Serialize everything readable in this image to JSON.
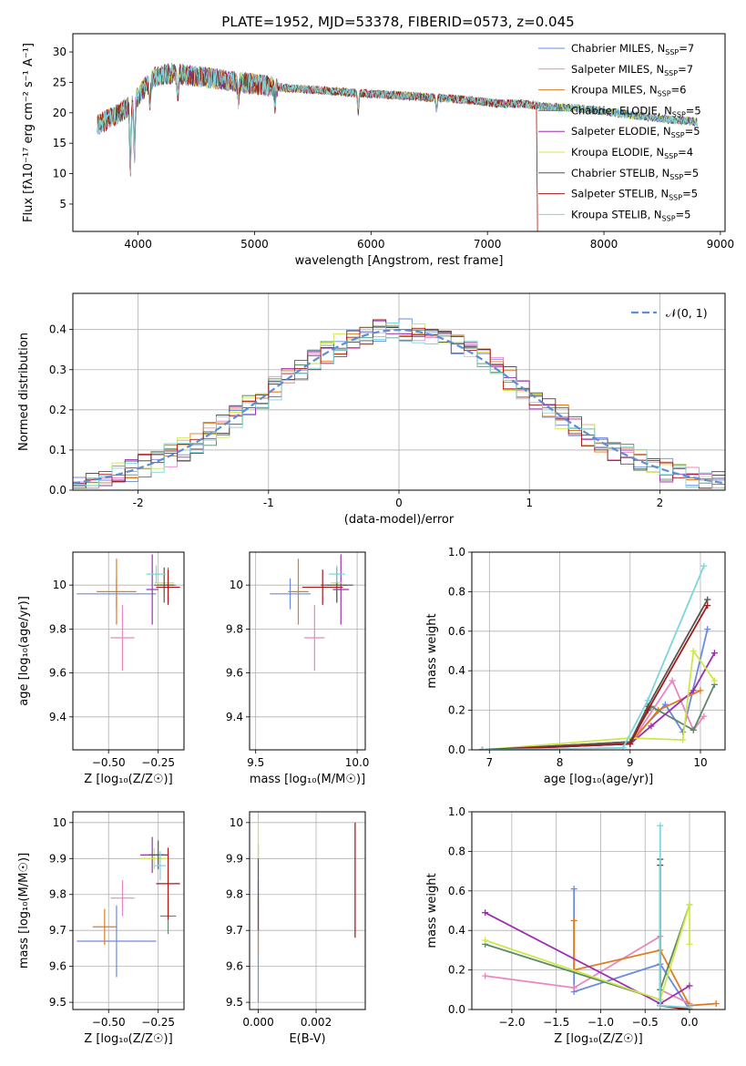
{
  "figure_title": "PLATE=1952, MJD=53378, FIBERID=0573, z=0.045",
  "colors": {
    "Chabrier MILES": "#6b8ae0",
    "Salpeter MILES": "#e887c0",
    "Kroupa MILES": "#e07b20",
    "Chabrier ELODIE": "#5a8a66",
    "Salpeter ELODIE": "#9c2fb0",
    "Kroupa ELODIE": "#cde84a",
    "Chabrier STELIB": "#555555",
    "Salpeter STELIB": "#a51818",
    "Kroupa STELIB": "#7dd6dd",
    "normal": "#5b8ed6"
  },
  "chart_data": [
    {
      "id": "spectrum",
      "type": "line",
      "xlabel": "wavelength [Angstrom, rest frame]",
      "ylabel": "Flux [fλ10⁻¹⁷ erg cm⁻² s⁻¹ A⁻¹]",
      "xlim": [
        3440,
        9040
      ],
      "ylim": [
        0.5,
        33
      ],
      "xticks": [
        4000,
        5000,
        6000,
        7000,
        8000,
        9000
      ],
      "yticks": [
        5,
        10,
        15,
        20,
        25,
        30
      ],
      "grid": false,
      "legend_position": "top-right",
      "legend": [
        {
          "name": "Chabrier MILES",
          "nssp": "7"
        },
        {
          "name": "Salpeter MILES",
          "nssp": "7"
        },
        {
          "name": "Kroupa MILES",
          "nssp": "6"
        },
        {
          "name": "Chabrier ELODIE",
          "nssp": "5"
        },
        {
          "name": "Salpeter ELODIE",
          "nssp": "5"
        },
        {
          "name": "Kroupa ELODIE",
          "nssp": "4"
        },
        {
          "name": "Chabrier STELIB",
          "nssp": "5"
        },
        {
          "name": "Salpeter STELIB",
          "nssp": "5"
        },
        {
          "name": "Kroupa STELIB",
          "nssp": "5"
        }
      ],
      "continuum": {
        "x": [
          3650,
          3750,
          3850,
          3950,
          4050,
          4150,
          4300,
          4500,
          4700,
          4900,
          5100,
          5300,
          5500,
          5700,
          5900,
          6100,
          6300,
          6500,
          6700,
          6900,
          7100,
          7300,
          7500,
          7700,
          7900,
          8100,
          8300,
          8500,
          8700,
          8800
        ],
        "y": [
          18,
          19,
          20,
          21.5,
          24,
          26,
          26.5,
          26,
          25.5,
          25,
          24.5,
          24,
          23.8,
          23.5,
          23.2,
          23,
          22.8,
          22.5,
          22.3,
          22,
          21.5,
          21.5,
          21,
          20.8,
          20.5,
          20,
          19.5,
          19,
          18.7,
          18.5
        ]
      },
      "series_end_wavelength": {
        "Salpeter STELIB": 7420,
        "Kroupa MILES": 7420,
        "Salpeter MILES": 7420
      }
    },
    {
      "id": "residuals",
      "type": "histogram",
      "xlabel": "(data-model)/error",
      "ylabel": "Normed distribution",
      "xlim": [
        -2.5,
        2.5
      ],
      "ylim": [
        0,
        0.49
      ],
      "xticks": [
        -2,
        -1,
        0,
        1,
        2
      ],
      "yticks": [
        0.0,
        0.1,
        0.2,
        0.3,
        0.4
      ],
      "grid": true,
      "bin_width": 0.1,
      "legend": [
        {
          "label": "𝒩(0, 1)",
          "style": "dashed"
        }
      ],
      "legend_position": "top-right"
    },
    {
      "id": "age_vs_Z",
      "type": "scatter",
      "xlabel": "Z [log₁₀(Z/Z☉)]",
      "ylabel": "age  [log₁₀(age/yr)]",
      "xlim": [
        -0.68,
        -0.12
      ],
      "ylim": [
        9.25,
        10.15
      ],
      "xticks": [
        -0.5,
        -0.25
      ],
      "xticklabels": [
        "−0.50",
        "−0.25"
      ],
      "yticks": [
        9.4,
        9.6,
        9.8,
        10.0
      ],
      "grid": true,
      "points": [
        {
          "series": "Chabrier MILES",
          "x": -0.46,
          "xerr": 0.2,
          "y": 9.96,
          "yerr": 0.07
        },
        {
          "series": "Salpeter MILES",
          "x": -0.43,
          "xerr": 0.06,
          "y": 9.76,
          "yerr": 0.15
        },
        {
          "series": "Kroupa MILES",
          "x": -0.46,
          "xerr": 0.1,
          "y": 9.97,
          "yerr": 0.15
        },
        {
          "series": "Chabrier ELODIE",
          "x": -0.2,
          "xerr": 0.04,
          "y": 10.0,
          "yerr": 0.08
        },
        {
          "series": "Salpeter ELODIE",
          "x": -0.28,
          "xerr": 0.03,
          "y": 9.98,
          "yerr": 0.16
        },
        {
          "series": "Kroupa ELODIE",
          "x": -0.22,
          "xerr": 0.05,
          "y": 10.01,
          "yerr": 0.05
        },
        {
          "series": "Chabrier STELIB",
          "x": -0.22,
          "xerr": 0.05,
          "y": 10.0,
          "yerr": 0.08
        },
        {
          "series": "Salpeter STELIB",
          "x": -0.2,
          "xerr": 0.06,
          "y": 9.99,
          "yerr": 0.08
        },
        {
          "series": "Kroupa STELIB",
          "x": -0.26,
          "xerr": 0.05,
          "y": 10.05,
          "yerr": 0.04
        }
      ]
    },
    {
      "id": "age_vs_mass",
      "type": "scatter",
      "xlabel": "mass [log₁₀(M/M☉)]",
      "ylabel": "",
      "xlim": [
        9.47,
        10.04
      ],
      "ylim": [
        9.25,
        10.15
      ],
      "xticks": [
        9.5,
        10.0
      ],
      "xticklabels": [
        "9.5",
        "10.0"
      ],
      "yticks": [
        9.4,
        9.6,
        9.8,
        10.0
      ],
      "grid": true,
      "points": [
        {
          "series": "Chabrier MILES",
          "x": 9.67,
          "xerr": 0.1,
          "y": 9.96,
          "yerr": 0.07
        },
        {
          "series": "Salpeter MILES",
          "x": 9.79,
          "xerr": 0.05,
          "y": 9.76,
          "yerr": 0.15
        },
        {
          "series": "Kroupa MILES",
          "x": 9.71,
          "xerr": 0.05,
          "y": 9.97,
          "yerr": 0.15
        },
        {
          "series": "Chabrier ELODIE",
          "x": 9.9,
          "xerr": 0.05,
          "y": 10.0,
          "yerr": 0.08
        },
        {
          "series": "Salpeter ELODIE",
          "x": 9.92,
          "xerr": 0.04,
          "y": 9.98,
          "yerr": 0.16
        },
        {
          "series": "Kroupa ELODIE",
          "x": 9.9,
          "xerr": 0.03,
          "y": 10.01,
          "yerr": 0.05
        },
        {
          "series": "Chabrier STELIB",
          "x": 9.9,
          "xerr": 0.08,
          "y": 10.0,
          "yerr": 0.08
        },
        {
          "series": "Salpeter STELIB",
          "x": 9.83,
          "xerr": 0.1,
          "y": 9.99,
          "yerr": 0.08
        },
        {
          "series": "Kroupa STELIB",
          "x": 9.9,
          "xerr": 0.04,
          "y": 10.05,
          "yerr": 0.04
        }
      ]
    },
    {
      "id": "weight_vs_age",
      "type": "line",
      "xlabel": "age  [log₁₀(age/yr)]",
      "ylabel": "mass weight",
      "xlim": [
        6.75,
        10.35
      ],
      "ylim": [
        0,
        1.0
      ],
      "xticks": [
        7,
        8,
        9,
        10
      ],
      "yticks": [
        0.0,
        0.2,
        0.4,
        0.6,
        0.8,
        1.0
      ],
      "grid": true,
      "series": [
        {
          "name": "Chabrier MILES",
          "x": [
            6.9,
            9.0,
            9.5,
            9.75,
            10.1
          ],
          "y": [
            0.0,
            0.04,
            0.23,
            0.09,
            0.61
          ]
        },
        {
          "name": "Salpeter MILES",
          "x": [
            6.9,
            9.0,
            9.6,
            9.9,
            10.05
          ],
          "y": [
            0.0,
            0.03,
            0.35,
            0.1,
            0.17
          ]
        },
        {
          "name": "Kroupa MILES",
          "x": [
            6.9,
            9.0,
            9.4,
            10.0
          ],
          "y": [
            0.0,
            0.03,
            0.2,
            0.3
          ]
        },
        {
          "name": "Chabrier ELODIE",
          "x": [
            6.9,
            9.0,
            9.3,
            9.9,
            10.2
          ],
          "y": [
            0.0,
            0.04,
            0.22,
            0.1,
            0.33
          ]
        },
        {
          "name": "Salpeter ELODIE",
          "x": [
            6.9,
            9.0,
            9.3,
            9.9,
            10.2
          ],
          "y": [
            0.0,
            0.03,
            0.12,
            0.3,
            0.49
          ]
        },
        {
          "name": "Kroupa ELODIE",
          "x": [
            6.9,
            9.0,
            9.75,
            9.9,
            10.2
          ],
          "y": [
            0.0,
            0.06,
            0.05,
            0.5,
            0.35
          ]
        },
        {
          "name": "Chabrier STELIB",
          "x": [
            6.9,
            9.0,
            9.25,
            10.1
          ],
          "y": [
            0.0,
            0.04,
            0.22,
            0.76
          ]
        },
        {
          "name": "Salpeter STELIB",
          "x": [
            6.9,
            9.0,
            9.25,
            10.1
          ],
          "y": [
            0.0,
            0.03,
            0.2,
            0.73
          ]
        },
        {
          "name": "Kroupa STELIB",
          "x": [
            6.9,
            8.9,
            9.25,
            10.05
          ],
          "y": [
            0.0,
            0.01,
            0.25,
            0.93
          ]
        }
      ]
    },
    {
      "id": "mass_vs_Z",
      "type": "scatter",
      "xlabel": "Z [log₁₀(Z/Z☉)]",
      "ylabel": "mass [log₁₀(M/M☉)]",
      "xlim": [
        -0.68,
        -0.12
      ],
      "ylim": [
        9.48,
        10.03
      ],
      "xticks": [
        -0.5,
        -0.25
      ],
      "xticklabels": [
        "−0.50",
        "−0.25"
      ],
      "yticks": [
        9.5,
        9.6,
        9.7,
        9.8,
        9.9,
        10.0
      ],
      "grid": true,
      "points": [
        {
          "series": "Chabrier MILES",
          "x": -0.46,
          "xerr": 0.2,
          "y": 9.67,
          "yerr": 0.1
        },
        {
          "series": "Salpeter MILES",
          "x": -0.43,
          "xerr": 0.06,
          "y": 9.79,
          "yerr": 0.05
        },
        {
          "series": "Kroupa MILES",
          "x": -0.52,
          "xerr": 0.06,
          "y": 9.71,
          "yerr": 0.05
        },
        {
          "series": "Chabrier ELODIE",
          "x": -0.2,
          "xerr": 0.04,
          "y": 9.74,
          "yerr": 0.05
        },
        {
          "series": "Salpeter ELODIE",
          "x": -0.28,
          "xerr": 0.06,
          "y": 9.91,
          "yerr": 0.05
        },
        {
          "series": "Kroupa ELODIE",
          "x": -0.27,
          "xerr": 0.07,
          "y": 9.9,
          "yerr": 0.03
        },
        {
          "series": "Chabrier STELIB",
          "x": -0.25,
          "xerr": 0.05,
          "y": 9.91,
          "yerr": 0.04
        },
        {
          "series": "Salpeter STELIB",
          "x": -0.2,
          "xerr": 0.06,
          "y": 9.83,
          "yerr": 0.1
        },
        {
          "series": "Kroupa STELIB",
          "x": -0.24,
          "xerr": 0.03,
          "y": 9.88,
          "yerr": 0.04
        }
      ]
    },
    {
      "id": "mass_vs_ebv",
      "type": "scatter",
      "xlabel": "E(B-V)",
      "ylabel": "",
      "xlim": [
        -0.0003,
        0.0037
      ],
      "ylim": [
        9.48,
        10.03
      ],
      "xticks": [
        0.0,
        0.002
      ],
      "xticklabels": [
        "0.000",
        "0.002"
      ],
      "yticks": [
        9.5,
        9.6,
        9.7,
        9.8,
        9.9,
        10.0
      ],
      "grid": true,
      "points": [
        {
          "series": "Chabrier MILES",
          "x": 0.0,
          "xerr": 0,
          "y": 9.67,
          "yerr": 0.17
        },
        {
          "series": "Kroupa MILES",
          "x": 0.0,
          "xerr": 0,
          "y": 9.71,
          "yerr": 0.08
        },
        {
          "series": "Chabrier STELIB",
          "x": 0.0,
          "xerr": 0,
          "y": 9.82,
          "yerr": 0.12
        },
        {
          "series": "Kroupa ELODIE",
          "x": 0.0,
          "xerr": 0,
          "y": 9.95,
          "yerr": 0.05
        },
        {
          "series": "Salpeter MILES",
          "x": 0.00335,
          "xerr": 0,
          "y": 9.84,
          "yerr": 0.16
        },
        {
          "series": "Salpeter STELIB",
          "x": 0.00335,
          "xerr": 0,
          "y": 9.84,
          "yerr": 0.16
        }
      ]
    },
    {
      "id": "weight_vs_Z",
      "type": "line",
      "xlabel": "Z [log₁₀(Z/Z☉)]",
      "ylabel": "mass weight",
      "xlim": [
        -2.45,
        0.4
      ],
      "ylim": [
        0,
        1.0
      ],
      "xticks": [
        -2.0,
        -1.5,
        -1.0,
        -0.5,
        0.0
      ],
      "xticklabels": [
        "−2.0",
        "−1.5",
        "−1.0",
        "−0.5",
        "0.0"
      ],
      "yticks": [
        0.0,
        0.2,
        0.4,
        0.6,
        0.8,
        1.0
      ],
      "grid": true,
      "series": [
        {
          "name": "Chabrier MILES",
          "x": [
            -1.3,
            -1.3,
            -0.33,
            0.0
          ],
          "y": [
            0.61,
            0.09,
            0.23,
            0.0
          ]
        },
        {
          "name": "Salpeter MILES",
          "x": [
            -2.3,
            -1.3,
            -0.33,
            -0.33,
            0.0
          ],
          "y": [
            0.17,
            0.11,
            0.37,
            0.1,
            0.03
          ]
        },
        {
          "name": "Kroupa MILES",
          "x": [
            -1.3,
            -1.3,
            -0.33,
            0.0,
            0.3
          ],
          "y": [
            0.45,
            0.2,
            0.3,
            0.02,
            0.03
          ]
        },
        {
          "name": "Chabrier ELODIE",
          "x": [
            -2.3,
            -0.33,
            -0.33,
            0.0
          ],
          "y": [
            0.33,
            0.05,
            0.1,
            0.53
          ]
        },
        {
          "name": "Salpeter ELODIE",
          "x": [
            -2.3,
            -0.33,
            0.0
          ],
          "y": [
            0.49,
            0.03,
            0.12
          ]
        },
        {
          "name": "Kroupa ELODIE",
          "x": [
            -2.3,
            -0.33,
            0.0,
            0.0
          ],
          "y": [
            0.35,
            0.05,
            0.53,
            0.33
          ]
        },
        {
          "name": "Chabrier STELIB",
          "x": [
            -0.33,
            -0.33,
            0.0
          ],
          "y": [
            0.76,
            0.02,
            0.0
          ]
        },
        {
          "name": "Salpeter STELIB",
          "x": [
            -0.33,
            -0.33,
            0.0
          ],
          "y": [
            0.73,
            0.02,
            0.0
          ]
        },
        {
          "name": "Kroupa STELIB",
          "x": [
            -0.33,
            -0.33,
            0.0
          ],
          "y": [
            0.93,
            0.02,
            0.01
          ]
        }
      ]
    }
  ]
}
